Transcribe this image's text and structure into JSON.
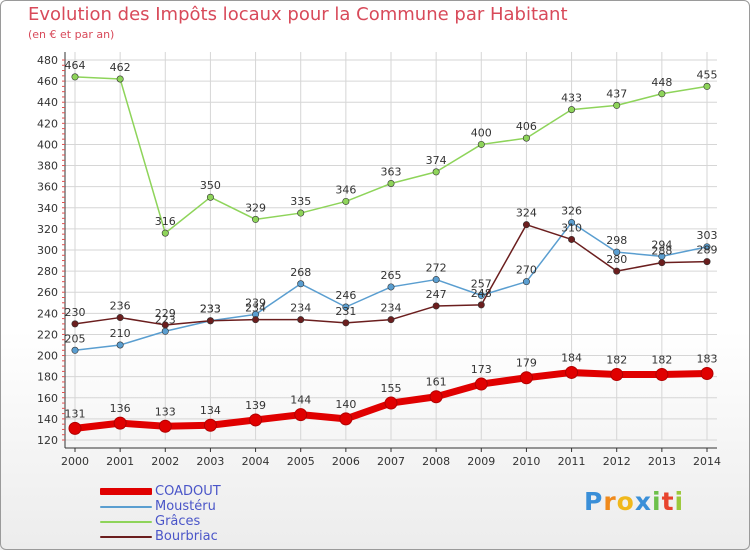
{
  "header": {
    "title": "Evolution des Impôts locaux pour la Commune par Habitant",
    "subtitle": "(en € et par an)"
  },
  "logo": {
    "text": "Proxiti",
    "colors": [
      "#3a8fd8",
      "#f08a1c",
      "#f0b81c",
      "#3a8fd8",
      "#6cc04a",
      "#e8442e",
      "#9bc83a"
    ]
  },
  "chart_data": {
    "type": "line",
    "title": "Evolution des Impôts locaux pour la Commune par Habitant",
    "subtitle": "(en € et par an)",
    "x": [
      "2000",
      "2001",
      "2002",
      "2003",
      "2004",
      "2005",
      "2006",
      "2007",
      "2008",
      "2009",
      "2010",
      "2011",
      "2012",
      "2013",
      "2014"
    ],
    "ylim": [
      120,
      480
    ],
    "yticks": [
      120,
      140,
      160,
      180,
      200,
      220,
      240,
      260,
      280,
      300,
      320,
      340,
      360,
      380,
      400,
      420,
      440,
      460,
      480
    ],
    "grid": true,
    "legend_position": "bottom-left",
    "series": [
      {
        "name": "COADOUT",
        "color": "#e00000",
        "values": [
          131,
          136,
          133,
          134,
          139,
          144,
          140,
          155,
          161,
          173,
          179,
          184,
          182,
          182,
          183
        ]
      },
      {
        "name": "Moustéru",
        "color": "#5a9ed0",
        "values": [
          205,
          210,
          223,
          233,
          239,
          268,
          246,
          265,
          272,
          257,
          270,
          326,
          298,
          294,
          303
        ]
      },
      {
        "name": "Grâces",
        "color": "#8ed45a",
        "values": [
          464,
          462,
          316,
          350,
          329,
          335,
          346,
          363,
          374,
          400,
          406,
          433,
          437,
          448,
          455
        ]
      },
      {
        "name": "Bourbriac",
        "color": "#6b1e1e",
        "values": [
          230,
          236,
          229,
          233,
          234,
          234,
          231,
          234,
          247,
          248,
          324,
          310,
          280,
          288,
          289
        ]
      }
    ]
  }
}
